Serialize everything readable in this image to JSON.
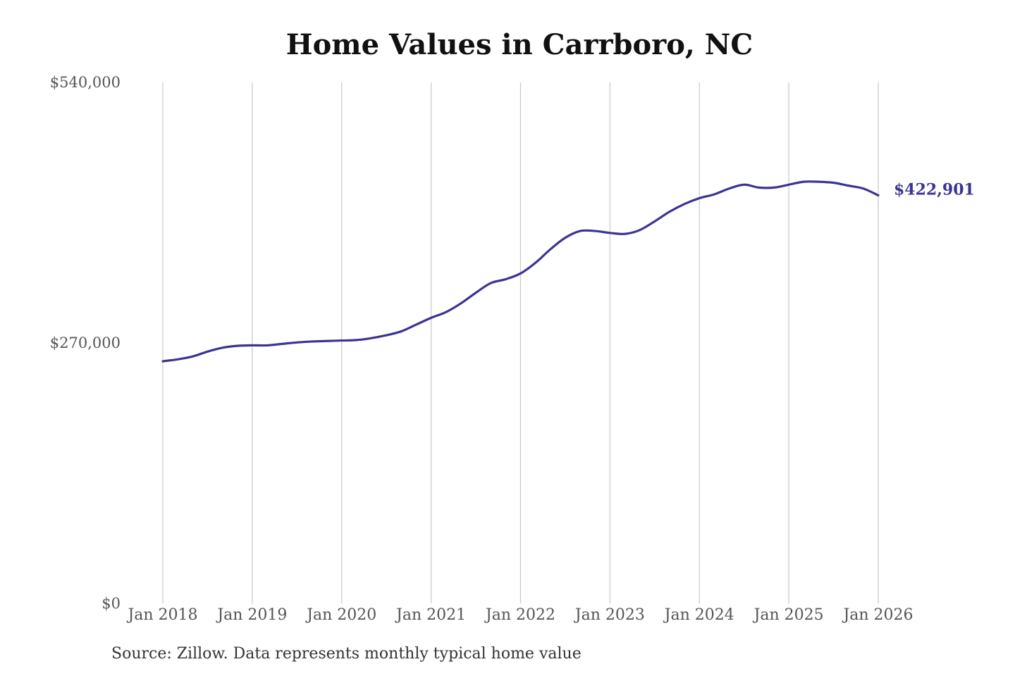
{
  "chart_data": {
    "type": "line",
    "title": "Home Values in Carrboro, NC",
    "source": "Source: Zillow. Data represents monthly typical home value",
    "y_ticks": [
      {
        "value": 0,
        "label": "$0"
      },
      {
        "value": 270000,
        "label": "$270,000"
      },
      {
        "value": 540000,
        "label": "$540,000"
      }
    ],
    "x_ticks": [
      {
        "value": "2018-01",
        "label": "Jan 2018"
      },
      {
        "value": "2019-01",
        "label": "Jan 2019"
      },
      {
        "value": "2020-01",
        "label": "Jan 2020"
      },
      {
        "value": "2021-01",
        "label": "Jan 2021"
      },
      {
        "value": "2022-01",
        "label": "Jan 2022"
      },
      {
        "value": "2023-01",
        "label": "Jan 2023"
      },
      {
        "value": "2024-01",
        "label": "Jan 2024"
      },
      {
        "value": "2025-01",
        "label": "Jan 2025"
      },
      {
        "value": "2026-01",
        "label": "Jan 2026"
      }
    ],
    "ylim": [
      0,
      540000
    ],
    "xlim": [
      "2018-01",
      "2026-01"
    ],
    "grid": "vertical at x ticks",
    "line_color": "#3c3494",
    "end_label": "$422,901",
    "series": [
      {
        "points": [
          [
            "2018-01",
            251000
          ],
          [
            "2018-03",
            253000
          ],
          [
            "2018-05",
            256000
          ],
          [
            "2018-07",
            261000
          ],
          [
            "2018-09",
            265000
          ],
          [
            "2018-11",
            267000
          ],
          [
            "2019-01",
            267500
          ],
          [
            "2019-03",
            267500
          ],
          [
            "2019-05",
            269000
          ],
          [
            "2019-07",
            270500
          ],
          [
            "2019-09",
            271500
          ],
          [
            "2019-11",
            272000
          ],
          [
            "2020-01",
            272500
          ],
          [
            "2020-03",
            273000
          ],
          [
            "2020-05",
            275000
          ],
          [
            "2020-07",
            278000
          ],
          [
            "2020-09",
            282000
          ],
          [
            "2020-11",
            289000
          ],
          [
            "2021-01",
            296000
          ],
          [
            "2021-03",
            302000
          ],
          [
            "2021-05",
            311000
          ],
          [
            "2021-07",
            322000
          ],
          [
            "2021-09",
            332000
          ],
          [
            "2021-11",
            336000
          ],
          [
            "2022-01",
            342000
          ],
          [
            "2022-03",
            353000
          ],
          [
            "2022-05",
            367000
          ],
          [
            "2022-07",
            379000
          ],
          [
            "2022-09",
            386000
          ],
          [
            "2022-11",
            386000
          ],
          [
            "2023-01",
            384000
          ],
          [
            "2023-03",
            383000
          ],
          [
            "2023-05",
            387000
          ],
          [
            "2023-07",
            396000
          ],
          [
            "2023-09",
            406000
          ],
          [
            "2023-11",
            414000
          ],
          [
            "2024-01",
            420000
          ],
          [
            "2024-03",
            424000
          ],
          [
            "2024-05",
            430000
          ],
          [
            "2024-07",
            434000
          ],
          [
            "2024-09",
            431000
          ],
          [
            "2024-11",
            431000
          ],
          [
            "2025-01",
            434000
          ],
          [
            "2025-03",
            437000
          ],
          [
            "2025-05",
            437000
          ],
          [
            "2025-07",
            436000
          ],
          [
            "2025-09",
            433000
          ],
          [
            "2025-11",
            430000
          ],
          [
            "2026-01",
            422901
          ]
        ]
      }
    ]
  }
}
